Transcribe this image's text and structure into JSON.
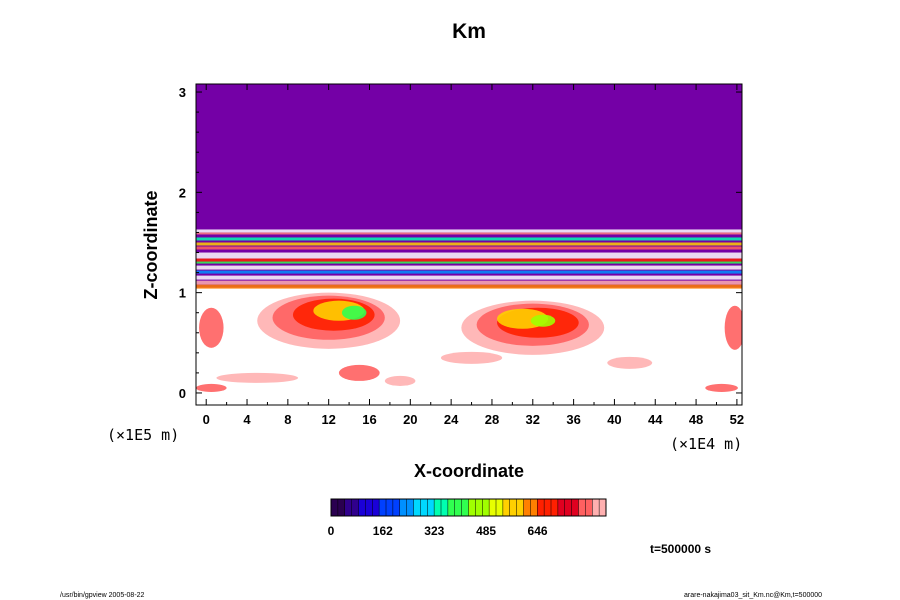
{
  "chart_data": {
    "type": "heatmap",
    "title": "Km",
    "xlabel": "X-coordinate",
    "ylabel": "Z-coordinate",
    "x_unit": "(×1E4 m)",
    "y_unit": "(×1E5 m)",
    "xlim": [
      -1,
      52.5
    ],
    "ylim": [
      -0.12,
      3.08
    ],
    "x_ticks": [
      "0",
      "4",
      "8",
      "12",
      "16",
      "20",
      "24",
      "28",
      "32",
      "36",
      "40",
      "44",
      "48",
      "52"
    ],
    "y_ticks": [
      "0",
      "1",
      "2",
      "3"
    ],
    "grid": false,
    "colorbar": {
      "tick_labels": [
        "0",
        "162",
        "323",
        "485",
        "646"
      ],
      "range": [
        0,
        860
      ],
      "colors": [
        "#2a0050",
        "#30008c",
        "#1a00d8",
        "#0040ff",
        "#0090ff",
        "#00d8ff",
        "#00ffb0",
        "#30ff50",
        "#a0ff00",
        "#e8ff00",
        "#ffd000",
        "#ff8000",
        "#ff2000",
        "#e00020",
        "#ff6060",
        "#ffb0b0"
      ]
    },
    "background_color": "#7400a6",
    "annotation": "t=500000 s"
  },
  "footer": {
    "left": "/usr/bin/gpview 2005-08-22",
    "right": "arare-nakajima03_sit_Km.nc@Km,t=500000"
  }
}
